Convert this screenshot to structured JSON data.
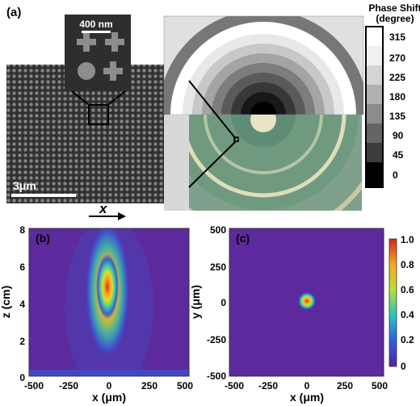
{
  "figure": {
    "panel_a": {
      "label": "(a)",
      "inset_scale": "400 nm",
      "main_scale": "3μm",
      "axis_symbol": "x",
      "colorbar": {
        "title_line1": "Phase Shift",
        "title_line2": "(degree)",
        "ticks": [
          "315",
          "270",
          "225",
          "180",
          "135",
          "90",
          "45",
          "0"
        ]
      }
    },
    "panel_b": {
      "label": "(b)",
      "xlabel": "x (μm)",
      "ylabel": "z (cm)",
      "xticks": [
        "-500",
        "-250",
        "0",
        "250",
        "500"
      ],
      "yticks": [
        "0",
        "2",
        "4",
        "6",
        "8"
      ]
    },
    "panel_c": {
      "label": "(c)",
      "xlabel": "x (μm)",
      "ylabel": "y (μm)",
      "xticks": [
        "-500",
        "-250",
        "0",
        "250",
        "500"
      ],
      "yticks": [
        "-500",
        "-250",
        "0",
        "250",
        "500"
      ],
      "colorbar_ticks": [
        "1.0",
        "0.8",
        "0.6",
        "0.4",
        "0.2",
        "0"
      ]
    }
  }
}
